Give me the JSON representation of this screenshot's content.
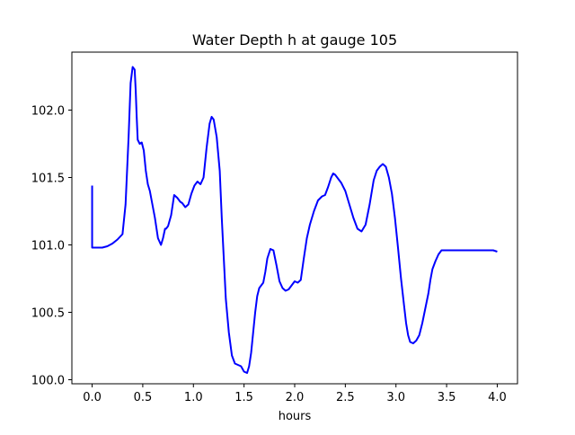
{
  "chart_data": {
    "type": "line",
    "title": "Water Depth h at gauge 105",
    "xlabel": "hours",
    "ylabel": "",
    "xlim": [
      -0.2,
      4.2
    ],
    "ylim": [
      99.97,
      102.43
    ],
    "xticks": [
      0.0,
      0.5,
      1.0,
      1.5,
      2.0,
      2.5,
      3.0,
      3.5,
      4.0
    ],
    "xtick_labels": [
      "0.0",
      "0.5",
      "1.0",
      "1.5",
      "2.0",
      "2.5",
      "3.0",
      "3.5",
      "4.0"
    ],
    "yticks": [
      100.0,
      100.5,
      101.0,
      101.5,
      102.0
    ],
    "ytick_labels": [
      "100.0",
      "100.5",
      "101.0",
      "101.5",
      "102.0"
    ],
    "grid": false,
    "series": [
      {
        "color": "#0000ff",
        "x": [
          0.0,
          0.0,
          0.05,
          0.1,
          0.15,
          0.2,
          0.25,
          0.3,
          0.33,
          0.36,
          0.38,
          0.4,
          0.42,
          0.43,
          0.44,
          0.45,
          0.47,
          0.49,
          0.51,
          0.53,
          0.55,
          0.57,
          0.59,
          0.62,
          0.65,
          0.68,
          0.7,
          0.72,
          0.73,
          0.75,
          0.78,
          0.81,
          0.84,
          0.87,
          0.89,
          0.92,
          0.95,
          0.98,
          1.01,
          1.04,
          1.07,
          1.1,
          1.13,
          1.16,
          1.18,
          1.2,
          1.23,
          1.26,
          1.28,
          1.3,
          1.32,
          1.35,
          1.38,
          1.41,
          1.44,
          1.47,
          1.5,
          1.53,
          1.55,
          1.57,
          1.59,
          1.61,
          1.63,
          1.65,
          1.67,
          1.69,
          1.71,
          1.73,
          1.76,
          1.79,
          1.82,
          1.85,
          1.88,
          1.91,
          1.94,
          1.97,
          2.0,
          2.03,
          2.06,
          2.09,
          2.12,
          2.15,
          2.19,
          2.23,
          2.27,
          2.3,
          2.33,
          2.36,
          2.38,
          2.4,
          2.43,
          2.46,
          2.5,
          2.54,
          2.58,
          2.62,
          2.66,
          2.7,
          2.74,
          2.78,
          2.81,
          2.84,
          2.87,
          2.9,
          2.93,
          2.96,
          2.99,
          3.02,
          3.05,
          3.08,
          3.1,
          3.12,
          3.14,
          3.17,
          3.2,
          3.23,
          3.26,
          3.29,
          3.32,
          3.34,
          3.36,
          3.39,
          3.42,
          3.45,
          3.48,
          3.51,
          3.54,
          3.57,
          3.6,
          3.63,
          3.66,
          3.69,
          3.72,
          3.75,
          3.78,
          3.81,
          3.84,
          3.87,
          3.9,
          3.93,
          3.96,
          4.0
        ],
        "y": [
          101.44,
          100.98,
          100.98,
          100.98,
          100.99,
          101.01,
          101.04,
          101.08,
          101.3,
          101.8,
          102.2,
          102.32,
          102.3,
          102.15,
          101.95,
          101.78,
          101.75,
          101.76,
          101.7,
          101.55,
          101.45,
          101.4,
          101.32,
          101.2,
          101.05,
          101.0,
          101.05,
          101.12,
          101.12,
          101.14,
          101.22,
          101.37,
          101.35,
          101.32,
          101.31,
          101.28,
          101.3,
          101.38,
          101.44,
          101.47,
          101.45,
          101.5,
          101.72,
          101.9,
          101.95,
          101.93,
          101.8,
          101.55,
          101.2,
          100.9,
          100.6,
          100.35,
          100.18,
          100.12,
          100.11,
          100.1,
          100.06,
          100.05,
          100.1,
          100.2,
          100.35,
          100.5,
          100.62,
          100.68,
          100.7,
          100.72,
          100.8,
          100.9,
          100.97,
          100.96,
          100.85,
          100.73,
          100.68,
          100.66,
          100.67,
          100.7,
          100.73,
          100.72,
          100.74,
          100.9,
          101.05,
          101.15,
          101.25,
          101.33,
          101.36,
          101.37,
          101.43,
          101.5,
          101.53,
          101.52,
          101.49,
          101.46,
          101.4,
          101.3,
          101.2,
          101.12,
          101.1,
          101.15,
          101.3,
          101.48,
          101.55,
          101.58,
          101.6,
          101.58,
          101.5,
          101.38,
          101.2,
          100.98,
          100.75,
          100.55,
          100.42,
          100.33,
          100.28,
          100.27,
          100.29,
          100.33,
          100.42,
          100.53,
          100.64,
          100.74,
          100.82,
          100.88,
          100.93,
          100.96,
          100.96,
          100.96,
          100.96,
          100.96,
          100.96,
          100.96,
          100.96,
          100.96,
          100.96,
          100.96,
          100.96,
          100.96,
          100.96,
          100.96,
          100.96,
          100.96,
          100.96,
          100.95
        ]
      }
    ]
  }
}
